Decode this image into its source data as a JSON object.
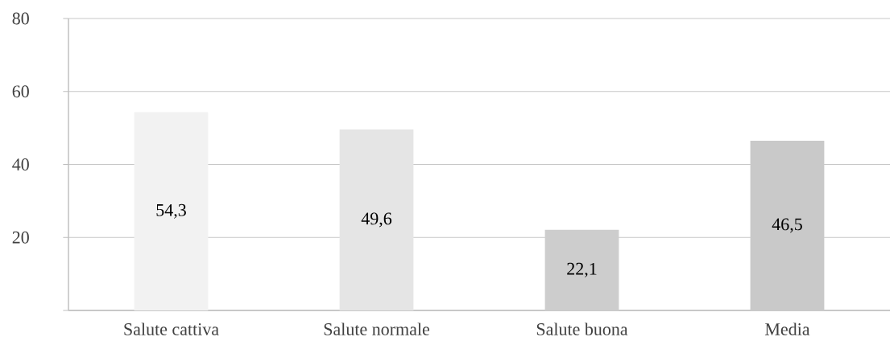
{
  "chart_data": {
    "type": "bar",
    "categories": [
      "Salute cattiva",
      "Salute normale",
      "Salute buona",
      "Media"
    ],
    "values": [
      54.3,
      49.6,
      22.1,
      46.5
    ],
    "colors": [
      "#f2f2f2",
      "#e5e5e5",
      "#cdcdcd",
      "#c9c9c9"
    ],
    "value_labels": [
      "54,3",
      "49,6",
      "22,1",
      "46,5"
    ],
    "ylim": [
      0,
      80
    ],
    "yticks": [
      {
        "value": 0,
        "label": null
      },
      20,
      40,
      60,
      80
    ],
    "grid": "y"
  }
}
